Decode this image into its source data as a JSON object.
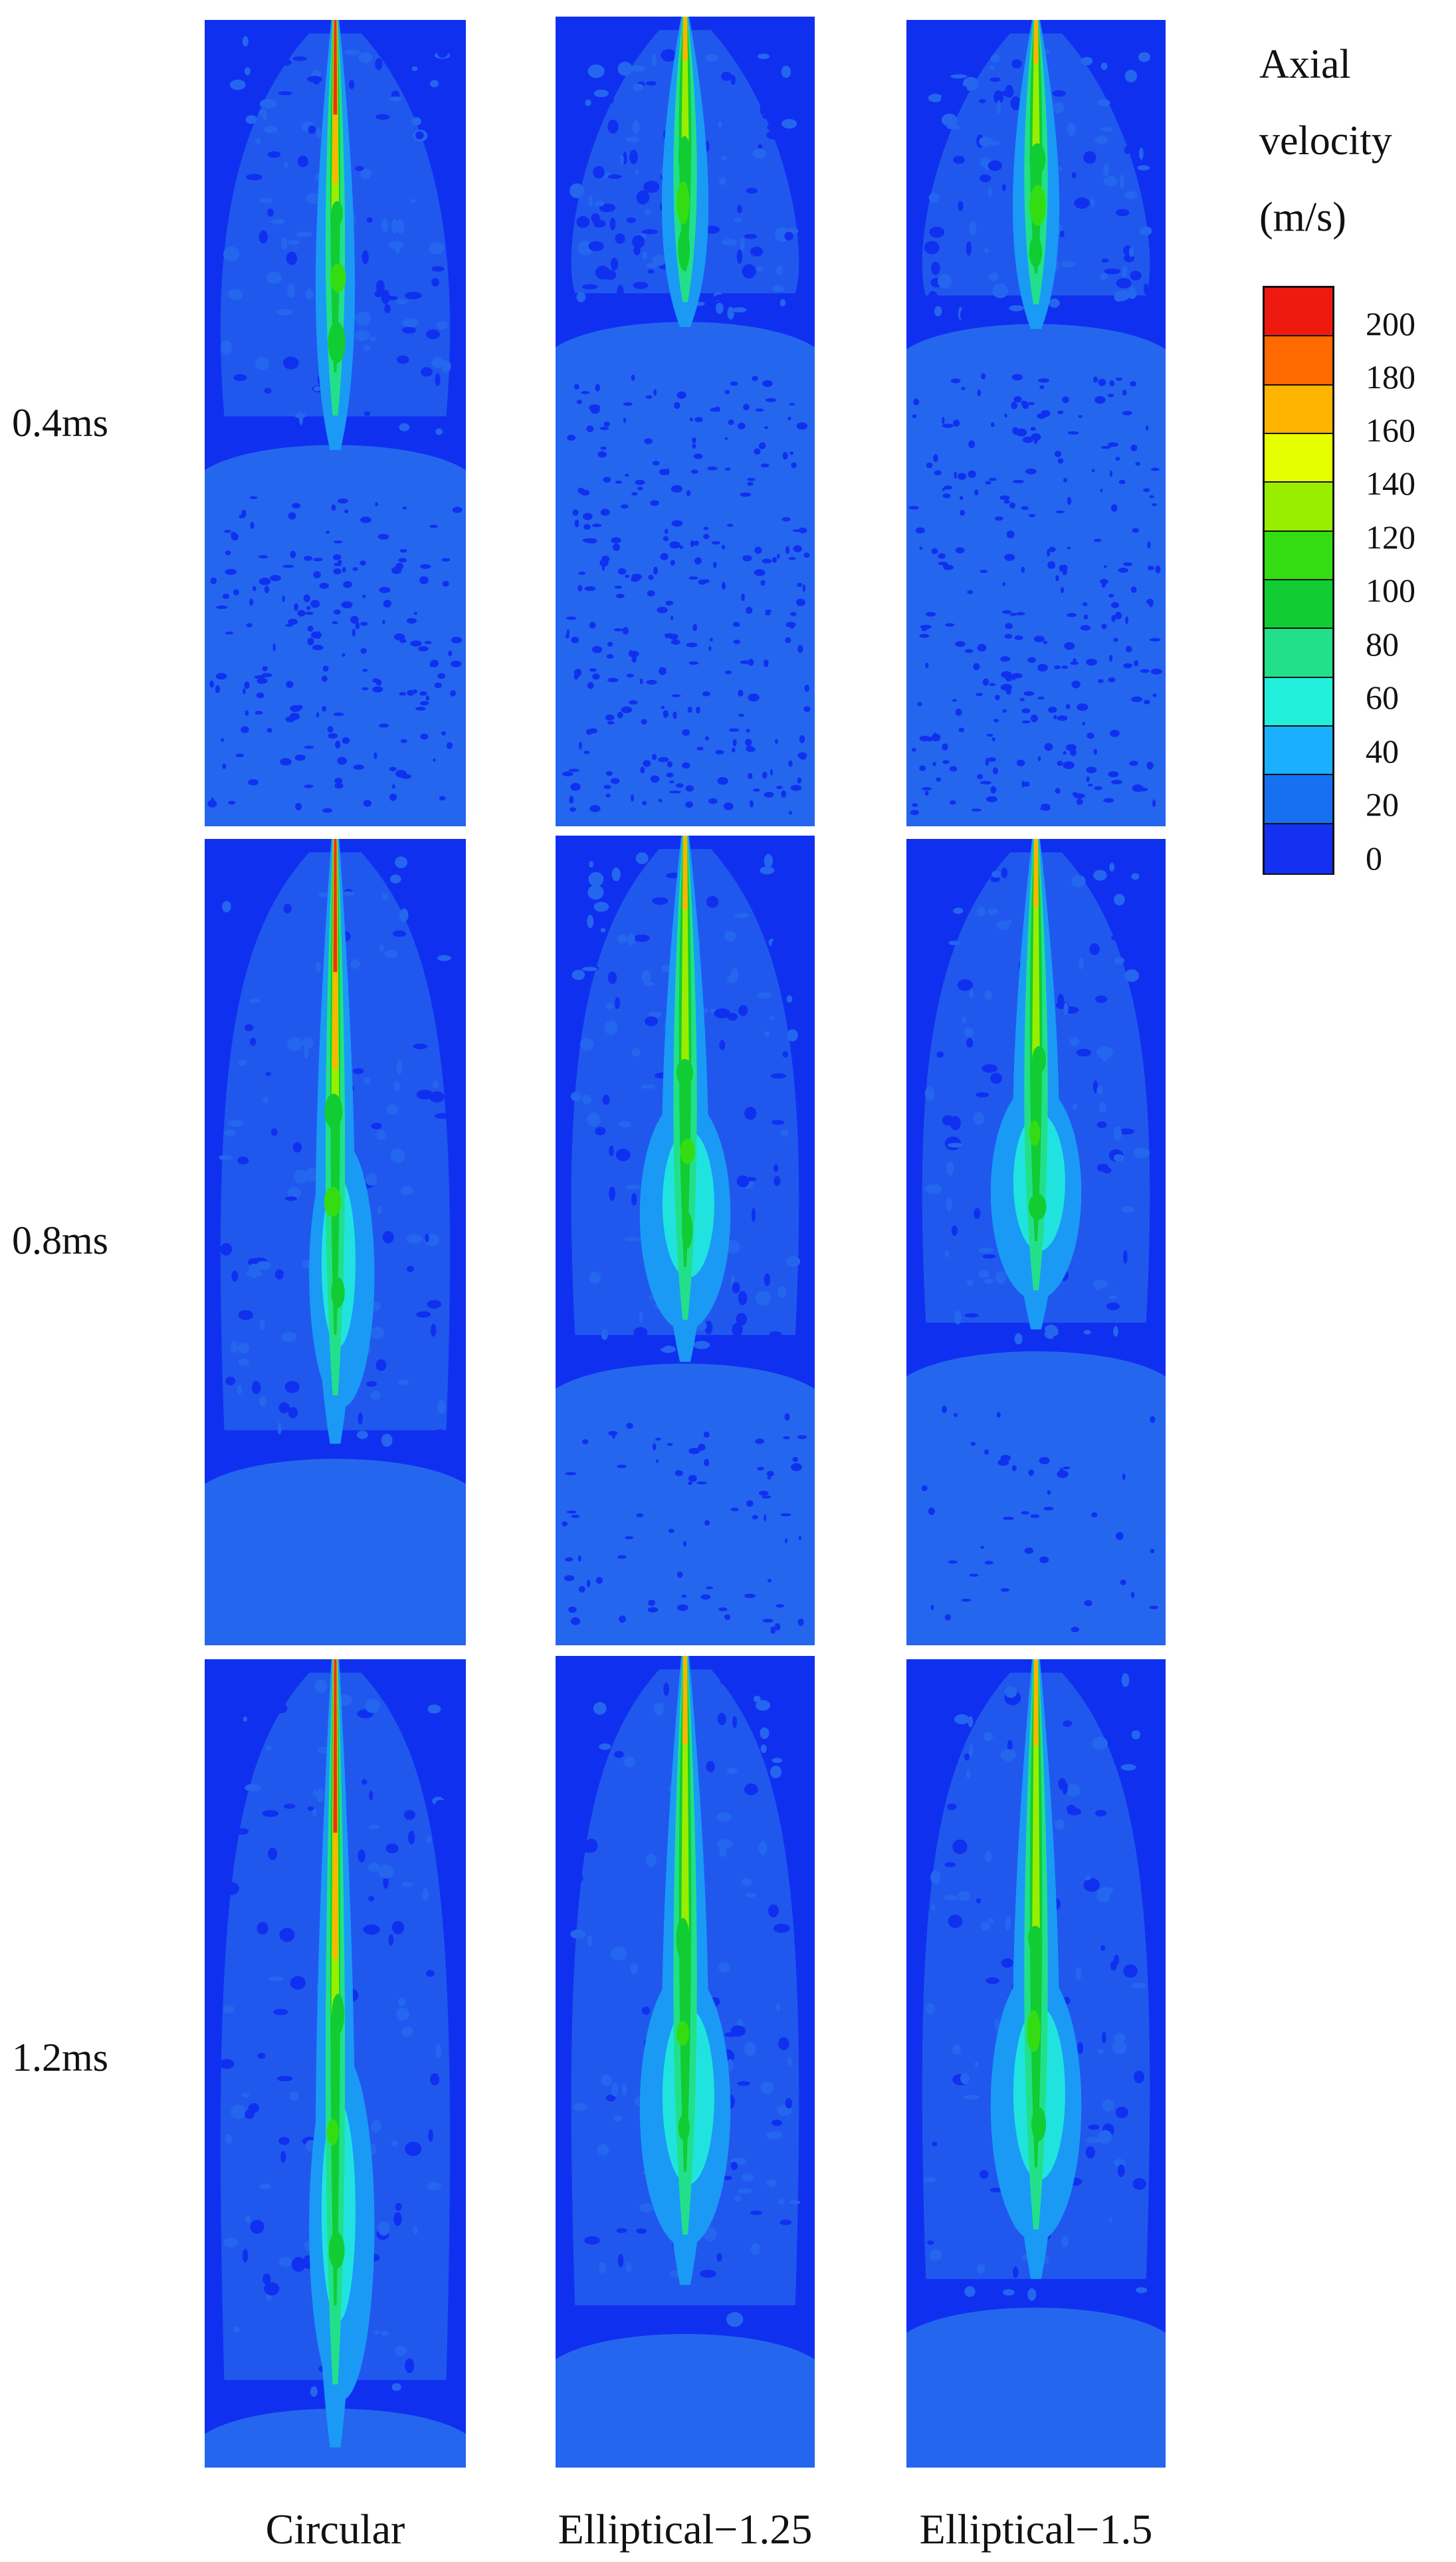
{
  "figure": {
    "rows": [
      {
        "label": "0.4ms",
        "stage": 0.4
      },
      {
        "label": "0.8ms",
        "stage": 0.8
      },
      {
        "label": "1.2ms",
        "stage": 1.2
      }
    ],
    "columns": [
      {
        "label": "Circular",
        "kind": "circular"
      },
      {
        "label": "Elliptical−1.25",
        "kind": "ellip125"
      },
      {
        "label": "Elliptical−1.5",
        "kind": "ellip15"
      }
    ]
  },
  "legend": {
    "title_lines": [
      "Axial",
      "velocity",
      "(m/s)"
    ],
    "ticks": [
      "200",
      "180",
      "160",
      "140",
      "120",
      "100",
      "80",
      "60",
      "40",
      "20",
      "0"
    ],
    "colors": [
      "#ee1a10",
      "#ff6a00",
      "#ffb400",
      "#e6ff00",
      "#99ee00",
      "#33dd11",
      "#11cc33",
      "#22e08a",
      "#22f0dc",
      "#1ab0ff",
      "#1670f2",
      "#1430f0"
    ]
  },
  "colors": {
    "background_low": "#1030f0",
    "ambient": "#2566ee"
  }
}
